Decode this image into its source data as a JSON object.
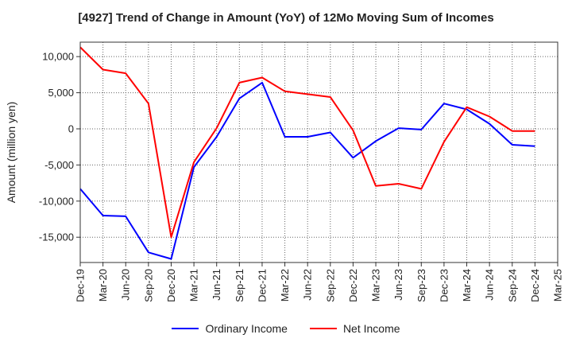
{
  "chart_data": {
    "type": "line",
    "title": "[4927]  Trend of Change in Amount (YoY) of 12Mo Moving Sum of Incomes",
    "ylabel": "Amount (million yen)",
    "xlabel": "",
    "ylim": [
      -18500,
      12000
    ],
    "yticks": [
      10000,
      5000,
      0,
      -5000,
      -10000,
      -15000
    ],
    "ytick_labels": [
      "10,000",
      "5,000",
      "0",
      "-5,000",
      "-10,000",
      "-15,000"
    ],
    "x_tick_labels": [
      "Dec-19",
      "Mar-20",
      "Jun-20",
      "Sep-20",
      "Dec-20",
      "Mar-21",
      "Jun-21",
      "Sep-21",
      "Dec-21",
      "Mar-22",
      "Jun-22",
      "Sep-22",
      "Dec-22",
      "Mar-23",
      "Jun-23",
      "Sep-23",
      "Dec-23",
      "Mar-24",
      "Jun-24",
      "Sep-24",
      "Dec-24",
      "Mar-25"
    ],
    "grid": true,
    "legend_position": "bottom",
    "series": [
      {
        "name": "Ordinary Income",
        "color": "#0000ff",
        "values": [
          -8300,
          -12000,
          -12100,
          -17100,
          -18000,
          -5300,
          -1100,
          4200,
          6400,
          -1100,
          -1100,
          -500,
          -4000,
          -1700,
          100,
          -100,
          3500,
          2700,
          700,
          -2200,
          -2400,
          null
        ]
      },
      {
        "name": "Net Income",
        "color": "#ff0000",
        "values": [
          11300,
          8200,
          7700,
          3500,
          -15000,
          -4600,
          100,
          6400,
          7100,
          5200,
          4800,
          4400,
          -200,
          -7900,
          -7600,
          -8300,
          -1800,
          3000,
          1700,
          -300,
          -300,
          null
        ]
      }
    ]
  }
}
